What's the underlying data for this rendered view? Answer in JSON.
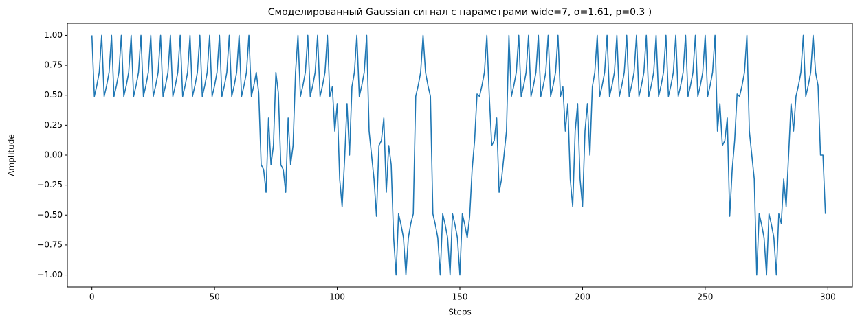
{
  "chart_data": {
    "type": "line",
    "title": "Смоделированный Gaussian сигнал с параметрами wide=7, σ=1.61, p=0.3 )",
    "xlabel": "Steps",
    "ylabel": "Amplitude",
    "x": [
      0,
      1,
      2,
      3,
      4,
      5,
      6,
      7,
      8,
      9,
      10,
      11,
      12,
      13,
      14,
      15,
      16,
      17,
      18,
      19,
      20,
      21,
      22,
      23,
      24,
      25,
      26,
      27,
      28,
      29,
      30,
      31,
      32,
      33,
      34,
      35,
      36,
      37,
      38,
      39,
      40,
      41,
      42,
      43,
      44,
      45,
      46,
      47,
      48,
      49,
      50,
      51,
      52,
      53,
      54,
      55,
      56,
      57,
      58,
      59,
      60,
      61,
      62,
      63,
      64,
      65,
      66,
      67,
      68,
      69,
      70,
      71,
      72,
      73,
      74,
      75,
      76,
      77,
      78,
      79,
      80,
      81,
      82,
      83,
      84,
      85,
      86,
      87,
      88,
      89,
      90,
      91,
      92,
      93,
      94,
      95,
      96,
      97,
      98,
      99,
      100,
      101,
      102,
      103,
      104,
      105,
      106,
      107,
      108,
      109,
      110,
      111,
      112,
      113,
      114,
      115,
      116,
      117,
      118,
      119,
      120,
      121,
      122,
      123,
      124,
      125,
      126,
      127,
      128,
      129,
      130,
      131,
      132,
      133,
      134,
      135,
      136,
      137,
      138,
      139,
      140,
      141,
      142,
      143,
      144,
      145,
      146,
      147,
      148,
      149,
      150,
      151,
      152,
      153,
      154,
      155,
      156,
      157,
      158,
      159,
      160,
      161,
      162,
      163,
      164,
      165,
      166,
      167,
      168,
      169,
      170,
      171,
      172,
      173,
      174,
      175,
      176,
      177,
      178,
      179,
      180,
      181,
      182,
      183,
      184,
      185,
      186,
      187,
      188,
      189,
      190,
      191,
      192,
      193,
      194,
      195,
      196,
      197,
      198,
      199,
      200,
      201,
      202,
      203,
      204,
      205,
      206,
      207,
      208,
      209,
      210,
      211,
      212,
      213,
      214,
      215,
      216,
      217,
      218,
      219,
      220,
      221,
      222,
      223,
      224,
      225,
      226,
      227,
      228,
      229,
      230,
      231,
      232,
      233,
      234,
      235,
      236,
      237,
      238,
      239,
      240,
      241,
      242,
      243,
      244,
      245,
      246,
      247,
      248,
      249,
      250,
      251,
      252,
      253,
      254,
      255,
      256,
      257,
      258,
      259,
      260,
      261,
      262,
      263,
      264,
      265,
      266,
      267,
      268,
      269,
      270,
      271,
      272,
      273,
      274,
      275,
      276,
      277,
      278,
      279,
      280,
      281,
      282,
      283,
      284,
      285,
      286,
      287,
      288,
      289,
      290,
      291,
      292,
      293,
      294,
      295,
      296,
      297,
      298,
      299
    ],
    "series": [
      {
        "color": "#1f77b4",
        "values": [
          1,
          0.49,
          0.58,
          0.69,
          1,
          0.49,
          0.58,
          0.69,
          1,
          0.49,
          0.58,
          0.69,
          1,
          0.49,
          0.58,
          0.69,
          1,
          0.49,
          0.58,
          0.69,
          1,
          0.49,
          0.58,
          0.69,
          1,
          0.49,
          0.58,
          0.69,
          1,
          0.49,
          0.58,
          0.69,
          1,
          0.49,
          0.58,
          0.69,
          1,
          0.49,
          0.58,
          0.69,
          1,
          0.49,
          0.58,
          0.69,
          1,
          0.49,
          0.58,
          0.69,
          1,
          0.49,
          0.58,
          0.69,
          1,
          0.49,
          0.58,
          0.69,
          1,
          0.49,
          0.58,
          0.69,
          1,
          0.49,
          0.58,
          0.69,
          1,
          0.49,
          0.58,
          0.69,
          0.52,
          -0.08,
          -0.12,
          -0.31,
          0.31,
          -0.08,
          0.08,
          0.69,
          0.52,
          -0.08,
          -0.12,
          -0.31,
          0.31,
          -0.08,
          0.08,
          0.69,
          1,
          0.49,
          0.58,
          0.69,
          1,
          0.49,
          0.58,
          0.69,
          1,
          0.49,
          0.58,
          0.69,
          1,
          0.49,
          0.57,
          0.2,
          0.43,
          -0.2,
          -0.43,
          -0.04,
          0.43,
          0,
          0.57,
          0.69,
          1,
          0.49,
          0.58,
          0.69,
          1,
          0.2,
          0,
          -0.2,
          -0.51,
          0.08,
          0.12,
          0.31,
          -0.31,
          0.08,
          -0.08,
          -0.69,
          -1,
          -0.49,
          -0.58,
          -0.69,
          -1,
          -0.69,
          -0.57,
          -0.49,
          0.49,
          0.58,
          0.69,
          1,
          0.69,
          0.58,
          0.49,
          -0.49,
          -0.58,
          -0.69,
          -1,
          -0.49,
          -0.58,
          -0.69,
          -1,
          -0.49,
          -0.58,
          -0.69,
          -1,
          -0.49,
          -0.58,
          -0.69,
          -0.51,
          -0.12,
          0.12,
          0.51,
          0.49,
          0.58,
          0.69,
          1,
          0.49,
          0.08,
          0.12,
          0.31,
          -0.31,
          -0.2,
          0,
          0.2,
          1,
          0.49,
          0.58,
          0.69,
          1,
          0.49,
          0.58,
          0.69,
          1,
          0.49,
          0.58,
          0.69,
          1,
          0.49,
          0.58,
          0.69,
          1,
          0.49,
          0.58,
          0.69,
          1,
          0.49,
          0.57,
          0.2,
          0.43,
          -0.2,
          -0.43,
          0.2,
          0.43,
          -0.2,
          -0.43,
          0.2,
          0.43,
          0,
          0.57,
          0.69,
          1,
          0.49,
          0.58,
          0.69,
          1,
          0.49,
          0.58,
          0.69,
          1,
          0.49,
          0.58,
          0.69,
          1,
          0.49,
          0.58,
          0.69,
          1,
          0.49,
          0.58,
          0.69,
          1,
          0.49,
          0.58,
          0.69,
          1,
          0.49,
          0.58,
          0.69,
          1,
          0.49,
          0.58,
          0.69,
          1,
          0.49,
          0.58,
          0.69,
          1,
          0.49,
          0.58,
          0.69,
          1,
          0.49,
          0.58,
          0.69,
          1,
          0.49,
          0.58,
          0.69,
          1,
          0.2,
          0.43,
          0.08,
          0.12,
          0.31,
          -0.51,
          -0.12,
          0.12,
          0.51,
          0.49,
          0.58,
          0.69,
          1,
          0.2,
          0,
          -0.2,
          -1,
          -0.49,
          -0.58,
          -0.69,
          -1,
          -0.49,
          -0.58,
          -0.69,
          -1,
          -0.49,
          -0.57,
          -0.2,
          -0.43,
          0,
          0.43,
          0.2,
          0.49,
          0.58,
          0.69,
          1,
          0.49,
          0.58,
          0.69,
          1,
          0.69,
          0.58,
          0,
          0,
          -0.49
        ]
      }
    ],
    "xlim": [
      -10,
      310
    ],
    "ylim": [
      -1.1,
      1.1
    ],
    "xticks": [
      0,
      50,
      100,
      150,
      200,
      250,
      300
    ],
    "yticks": [
      {
        "value": -1,
        "label": "−1.00"
      },
      {
        "value": -0.75,
        "label": "−0.75"
      },
      {
        "value": -0.5,
        "label": "−0.50"
      },
      {
        "value": -0.25,
        "label": "−0.25"
      },
      {
        "value": 0,
        "label": "0.00"
      },
      {
        "value": 0.25,
        "label": "0.25"
      },
      {
        "value": 0.5,
        "label": "0.50"
      },
      {
        "value": 0.75,
        "label": "0.75"
      },
      {
        "value": 1,
        "label": "1.00"
      }
    ],
    "grid": false
  }
}
